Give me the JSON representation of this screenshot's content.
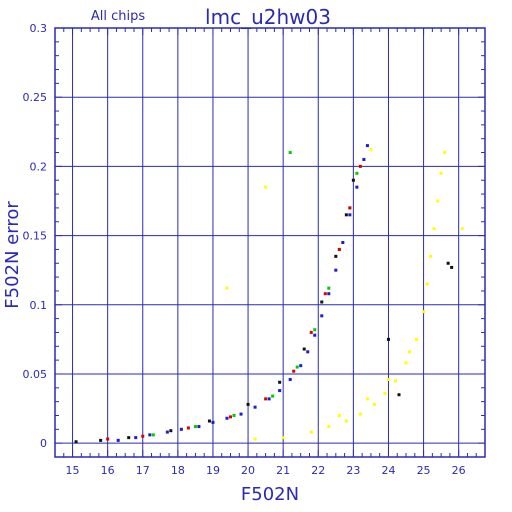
{
  "chart_data": {
    "type": "scatter",
    "title": "lmc_u2hw03",
    "subtitle": "All chips",
    "xlabel": "F502N",
    "ylabel": "F502N error",
    "xlim": [
      14.5,
      26.75
    ],
    "ylim": [
      -0.01,
      0.3
    ],
    "x_ticks": [
      15,
      16,
      17,
      18,
      19,
      20,
      21,
      22,
      23,
      24,
      25,
      26
    ],
    "y_ticks": [
      0,
      0.05,
      0.1,
      0.15,
      0.2,
      0.25,
      0.3
    ],
    "y_tick_labels": [
      "0",
      "0.05",
      "0.1",
      "0.15",
      "0.2",
      "0.25",
      "0.3"
    ],
    "grid": true,
    "colors": {
      "axis": "#2a2ab8",
      "grid": "#2a2ab8",
      "text": "#2a2ab8",
      "chip1": "#1a1ad8",
      "chip2": "#00cc00",
      "chip3": "#dd0000",
      "chip4": "#111111",
      "chip5": "#ffff00"
    },
    "series": [
      {
        "color": "#1a1ad8",
        "points": [
          [
            16.3,
            0.002
          ],
          [
            16.8,
            0.004
          ],
          [
            17.2,
            0.006
          ],
          [
            17.7,
            0.008
          ],
          [
            18.1,
            0.01
          ],
          [
            18.6,
            0.012
          ],
          [
            19.0,
            0.015
          ],
          [
            19.4,
            0.018
          ],
          [
            19.8,
            0.021
          ],
          [
            20.2,
            0.026
          ],
          [
            20.6,
            0.032
          ],
          [
            20.9,
            0.038
          ],
          [
            21.2,
            0.046
          ],
          [
            21.5,
            0.056
          ],
          [
            21.7,
            0.066
          ],
          [
            21.9,
            0.078
          ],
          [
            22.1,
            0.092
          ],
          [
            22.3,
            0.108
          ],
          [
            22.5,
            0.125
          ],
          [
            22.7,
            0.145
          ],
          [
            22.9,
            0.165
          ],
          [
            23.1,
            0.185
          ],
          [
            23.3,
            0.205
          ],
          [
            23.4,
            0.215
          ]
        ]
      },
      {
        "color": "#00cc00",
        "points": [
          [
            17.3,
            0.006
          ],
          [
            18.5,
            0.012
          ],
          [
            19.6,
            0.02
          ],
          [
            20.7,
            0.034
          ],
          [
            21.4,
            0.055
          ],
          [
            21.9,
            0.082
          ],
          [
            22.3,
            0.112
          ],
          [
            22.6,
            0.14
          ],
          [
            22.9,
            0.17
          ],
          [
            23.1,
            0.195
          ],
          [
            21.2,
            0.21
          ]
        ]
      },
      {
        "color": "#dd0000",
        "points": [
          [
            16.0,
            0.003
          ],
          [
            17.0,
            0.005
          ],
          [
            18.3,
            0.011
          ],
          [
            19.5,
            0.019
          ],
          [
            20.5,
            0.032
          ],
          [
            21.3,
            0.052
          ],
          [
            21.8,
            0.08
          ],
          [
            22.2,
            0.108
          ],
          [
            22.6,
            0.14
          ],
          [
            22.9,
            0.17
          ],
          [
            23.2,
            0.2
          ]
        ]
      },
      {
        "color": "#111111",
        "points": [
          [
            15.1,
            0.001
          ],
          [
            15.8,
            0.002
          ],
          [
            16.6,
            0.004
          ],
          [
            17.8,
            0.009
          ],
          [
            18.9,
            0.016
          ],
          [
            20.0,
            0.028
          ],
          [
            20.9,
            0.044
          ],
          [
            21.6,
            0.068
          ],
          [
            22.1,
            0.102
          ],
          [
            22.5,
            0.135
          ],
          [
            22.8,
            0.165
          ],
          [
            23.0,
            0.19
          ],
          [
            24.0,
            0.075
          ],
          [
            24.3,
            0.035
          ],
          [
            25.8,
            0.127
          ],
          [
            25.7,
            0.13
          ]
        ]
      },
      {
        "color": "#ffff00",
        "points": [
          [
            20.2,
            0.003
          ],
          [
            21.0,
            0.004
          ],
          [
            21.8,
            0.008
          ],
          [
            22.3,
            0.012
          ],
          [
            22.8,
            0.016
          ],
          [
            23.2,
            0.021
          ],
          [
            23.6,
            0.028
          ],
          [
            23.9,
            0.036
          ],
          [
            24.2,
            0.045
          ],
          [
            24.5,
            0.058
          ],
          [
            24.8,
            0.075
          ],
          [
            25.0,
            0.095
          ],
          [
            25.1,
            0.115
          ],
          [
            25.2,
            0.135
          ],
          [
            25.3,
            0.155
          ],
          [
            25.4,
            0.175
          ],
          [
            25.5,
            0.195
          ],
          [
            25.6,
            0.21
          ],
          [
            22.6,
            0.02
          ],
          [
            23.4,
            0.032
          ],
          [
            24.0,
            0.046
          ],
          [
            24.6,
            0.066
          ],
          [
            20.5,
            0.185
          ],
          [
            19.4,
            0.112
          ],
          [
            26.1,
            0.155
          ],
          [
            23.5,
            0.212
          ]
        ]
      }
    ]
  }
}
